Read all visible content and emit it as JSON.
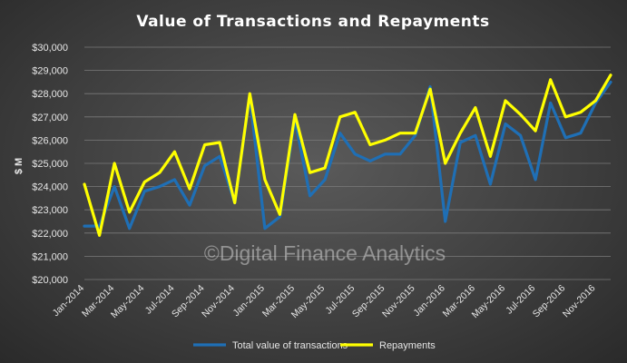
{
  "chart_data": {
    "type": "line",
    "title": "Value of Transactions and Repayments",
    "ylabel": "$ M",
    "xlabel": "",
    "ylim": [
      20000,
      30000
    ],
    "yticks": [
      20000,
      21000,
      22000,
      23000,
      24000,
      25000,
      26000,
      27000,
      28000,
      29000,
      30000
    ],
    "ytick_labels": [
      "$20,000",
      "$21,000",
      "$22,000",
      "$23,000",
      "$24,000",
      "$25,000",
      "$26,000",
      "$27,000",
      "$28,000",
      "$29,000",
      "$30,000"
    ],
    "x": [
      "Jan-2014",
      "Feb-2014",
      "Mar-2014",
      "Apr-2014",
      "May-2014",
      "Jun-2014",
      "Jul-2014",
      "Aug-2014",
      "Sep-2014",
      "Oct-2014",
      "Nov-2014",
      "Dec-2014",
      "Jan-2015",
      "Feb-2015",
      "Mar-2015",
      "Apr-2015",
      "May-2015",
      "Jun-2015",
      "Jul-2015",
      "Aug-2015",
      "Sep-2015",
      "Oct-2015",
      "Nov-2015",
      "Dec-2015",
      "Jan-2016",
      "Feb-2016",
      "Mar-2016",
      "Apr-2016",
      "May-2016",
      "Jun-2016",
      "Jul-2016",
      "Aug-2016",
      "Sep-2016",
      "Oct-2016",
      "Nov-2016",
      "Dec-2016"
    ],
    "xtick_labels": [
      "Jan-2014",
      "Mar-2014",
      "May-2014",
      "Jul-2014",
      "Sep-2014",
      "Nov-2014",
      "Jan-2015",
      "Mar-2015",
      "May-2015",
      "Jul-2015",
      "Sep-2015",
      "Nov-2015",
      "Jan-2016",
      "Mar-2016",
      "May-2016",
      "Jul-2016",
      "Sep-2016",
      "Nov-2016"
    ],
    "series": [
      {
        "name": "Total value of transactions",
        "color": "#1f6fb5",
        "values": [
          22300,
          22300,
          24000,
          22200,
          23800,
          24000,
          24300,
          23200,
          24900,
          25300,
          23300,
          27900,
          22200,
          22700,
          26900,
          23600,
          24300,
          26300,
          25400,
          25100,
          25400,
          25400,
          26200,
          28300,
          22500,
          25900,
          26200,
          24100,
          26700,
          26200,
          24300,
          27600,
          26100,
          26300,
          27600,
          28500
        ]
      },
      {
        "name": "Repayments",
        "color": "#ffff00",
        "values": [
          24100,
          21900,
          25000,
          22900,
          24200,
          24600,
          25500,
          23900,
          25800,
          25900,
          23300,
          28000,
          24300,
          22800,
          27100,
          24600,
          24800,
          27000,
          27200,
          25800,
          26000,
          26300,
          26300,
          28200,
          25000,
          26300,
          27400,
          25300,
          27700,
          27100,
          26400,
          28600,
          27000,
          27200,
          27700,
          28800
        ]
      }
    ],
    "legend_position": "bottom",
    "grid": true
  },
  "watermark": "©Digital Finance Analytics"
}
